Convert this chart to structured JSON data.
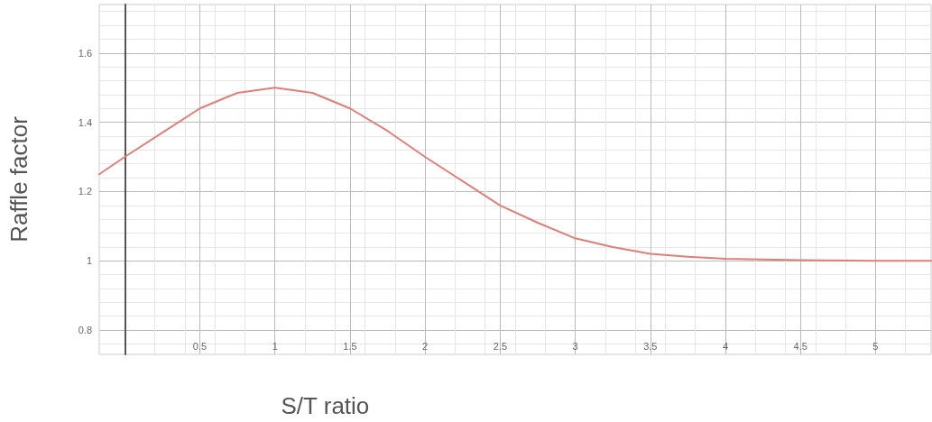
{
  "chart_data": {
    "type": "line",
    "xlabel": "S/T ratio",
    "ylabel": "Raffle factor",
    "series": [
      {
        "color": "#e07f7a",
        "x": [
          -0.17,
          0,
          0.25,
          0.5,
          0.75,
          1,
          1.25,
          1.5,
          1.75,
          2,
          2.25,
          2.5,
          2.75,
          3,
          3.25,
          3.5,
          3.75,
          4,
          4.5,
          5,
          5.37
        ],
        "values": [
          1.25,
          1.3,
          1.37,
          1.44,
          1.485,
          1.5,
          1.485,
          1.44,
          1.375,
          1.3,
          1.23,
          1.16,
          1.11,
          1.065,
          1.04,
          1.02,
          1.012,
          1.006,
          1.002,
          1.0,
          1.0
        ]
      }
    ],
    "xlim": [
      -0.17,
      5.37
    ],
    "ylim": [
      0.73,
      1.74
    ],
    "xticks": [
      0.5,
      1,
      1.5,
      2,
      2.5,
      3,
      3.5,
      4,
      4.5,
      5
    ],
    "yticks": [
      0.8,
      1,
      1.2,
      1.4,
      1.6
    ],
    "grid": true,
    "marker": "none",
    "line_style": "solid"
  }
}
